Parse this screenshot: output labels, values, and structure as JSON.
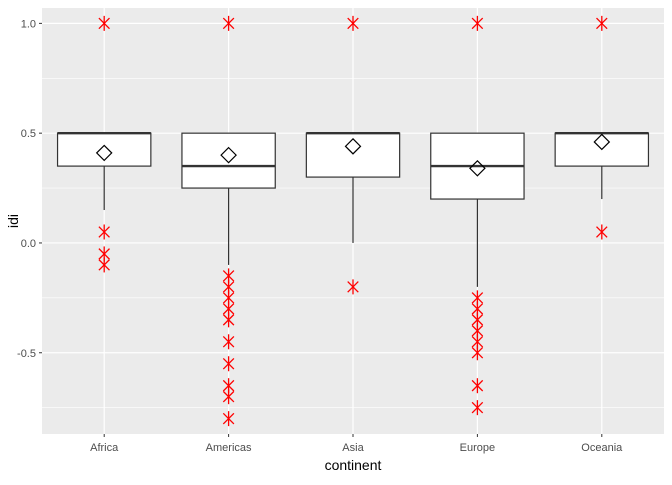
{
  "chart_data": {
    "type": "boxplot",
    "xlabel": "continent",
    "ylabel": "idi",
    "ylim": [
      -0.87,
      1.07
    ],
    "yticks": [
      -0.5,
      0.0,
      0.5,
      1.0
    ],
    "ytick_labels": [
      "-0.5",
      "0.0",
      "0.5",
      "1.0"
    ],
    "grid": true,
    "colors": {
      "panel_background": "#EBEBEB",
      "grid_major": "#FFFFFF",
      "box_fill": "#FFFFFF",
      "box_line": "#333333",
      "outlier": "#FF0000",
      "mean_marker": "#000000",
      "axis_text": "#4D4D4D",
      "axis_title": "#000000"
    },
    "mean_marker_shape": "diamond-icon",
    "outlier_marker_shape": "asterisk-icon",
    "categories": [
      "Africa",
      "Americas",
      "Asia",
      "Europe",
      "Oceania"
    ],
    "boxes": [
      {
        "category": "Africa",
        "q1": 0.35,
        "median": 0.5,
        "q3": 0.5,
        "whisker_low": 0.15,
        "whisker_high": 0.5,
        "mean": 0.41,
        "outliers": [
          1.0,
          0.05,
          -0.05,
          -0.1
        ]
      },
      {
        "category": "Americas",
        "q1": 0.25,
        "median": 0.35,
        "q3": 0.5,
        "whisker_low": -0.1,
        "whisker_high": 0.5,
        "mean": 0.4,
        "outliers": [
          1.0,
          -0.15,
          -0.2,
          -0.25,
          -0.3,
          -0.35,
          -0.45,
          -0.55,
          -0.65,
          -0.7,
          -0.8
        ]
      },
      {
        "category": "Asia",
        "q1": 0.3,
        "median": 0.5,
        "q3": 0.5,
        "whisker_low": 0.0,
        "whisker_high": 0.5,
        "mean": 0.44,
        "outliers": [
          1.0,
          -0.2
        ]
      },
      {
        "category": "Europe",
        "q1": 0.2,
        "median": 0.35,
        "q3": 0.5,
        "whisker_low": -0.2,
        "whisker_high": 0.5,
        "mean": 0.34,
        "outliers": [
          1.0,
          -0.25,
          -0.3,
          -0.35,
          -0.4,
          -0.45,
          -0.5,
          -0.65,
          -0.75
        ]
      },
      {
        "category": "Oceania",
        "q1": 0.35,
        "median": 0.5,
        "q3": 0.5,
        "whisker_low": 0.2,
        "whisker_high": 0.5,
        "mean": 0.46,
        "outliers": [
          1.0,
          0.05
        ]
      }
    ]
  }
}
